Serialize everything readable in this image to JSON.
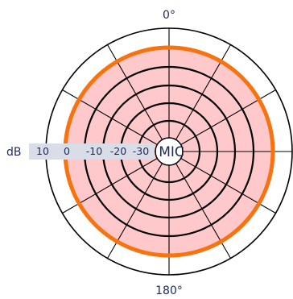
{
  "angle_labels": {
    "top": "0°",
    "bottom": "180°"
  },
  "scale": {
    "unit": "dB",
    "labels": [
      "10",
      "0",
      "-10",
      "-20",
      "-30"
    ]
  },
  "center_label": "MIC",
  "pattern": {
    "type": "omnidirectional",
    "level_db": 10
  },
  "colors": {
    "pattern_stroke": "#f7730f",
    "pattern_fill": "#ffc9cc",
    "scale_band": "#d9dde8",
    "grid": "#000000",
    "text": "#1f2a5c"
  }
}
